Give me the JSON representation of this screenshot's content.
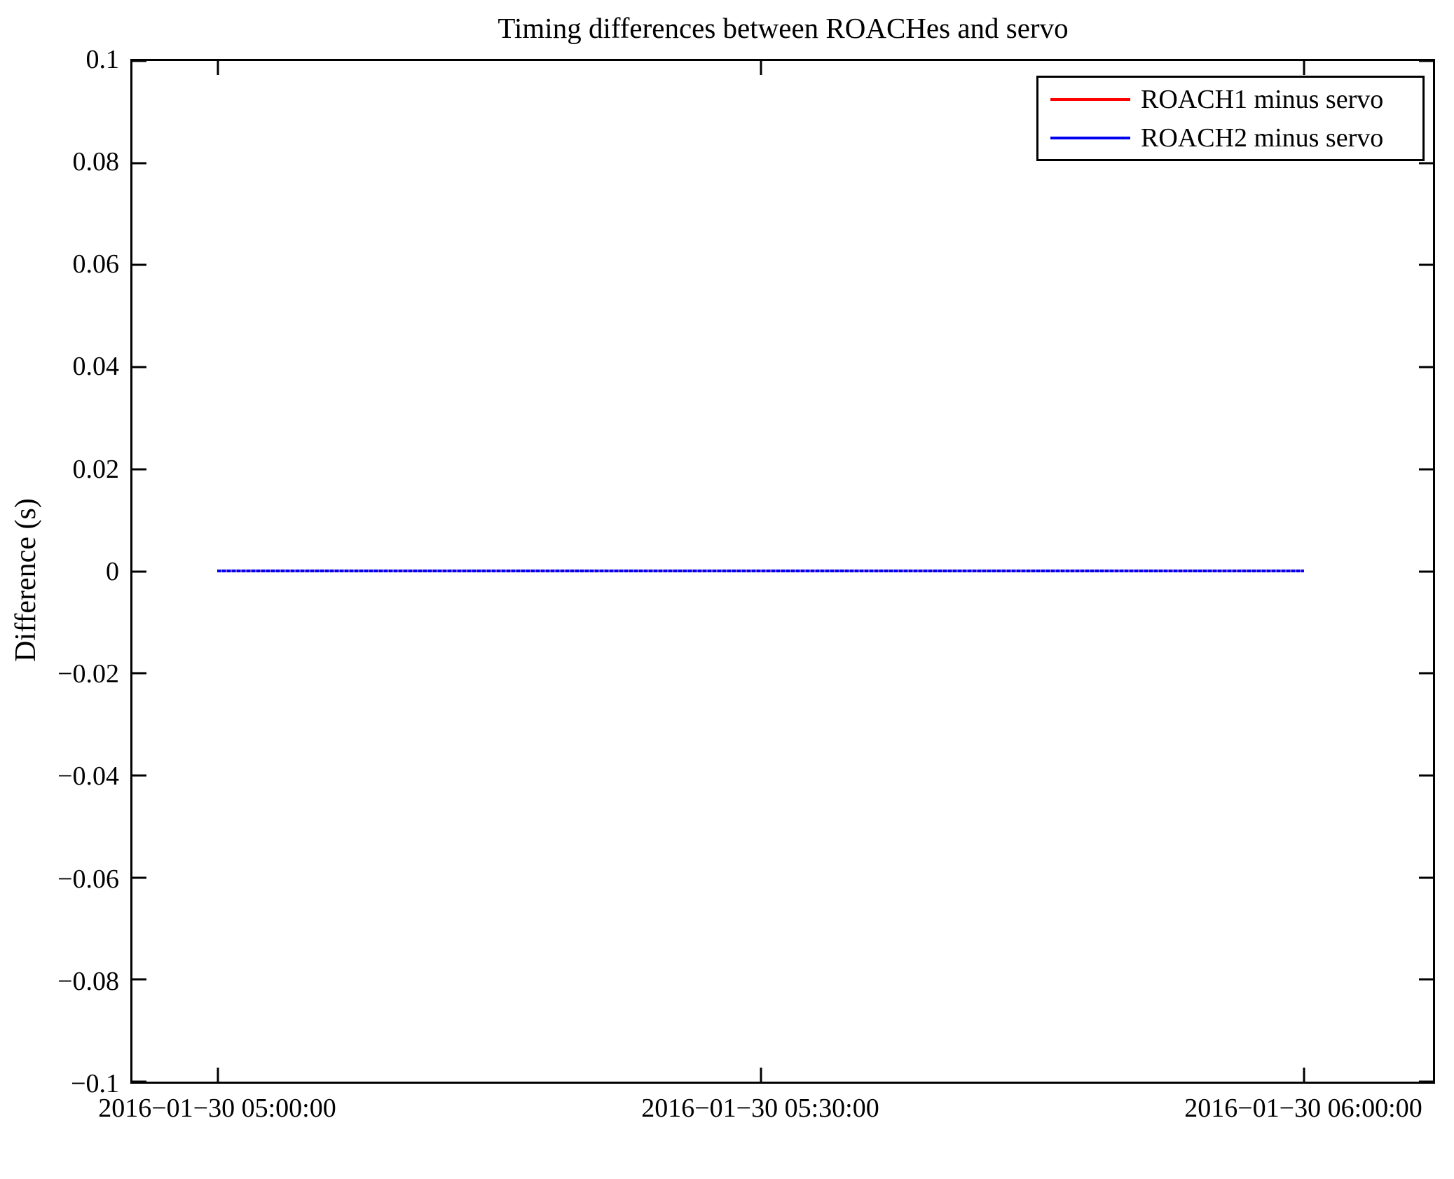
{
  "title": "Timing differences between ROACHes and servo",
  "y_axis": {
    "label": "Difference (s)",
    "tick_labels": [
      "0.1",
      "0.08",
      "0.06",
      "0.04",
      "0.02",
      "0",
      "−0.02",
      "−0.04",
      "−0.06",
      "−0.08",
      "−0.1"
    ]
  },
  "x_axis": {
    "tick_labels": [
      "2016−01−30 05:00:00",
      "2016−01−30 05:30:00",
      "2016−01−30 06:00:00"
    ]
  },
  "legend": {
    "position": "upper right",
    "entries": [
      {
        "label": "ROACH1 minus servo",
        "color": "#ff0000"
      },
      {
        "label": "ROACH2 minus servo",
        "color": "#0000ee"
      }
    ]
  },
  "chart_data": {
    "type": "line",
    "title": "Timing differences between ROACHes and servo",
    "xlabel": "",
    "ylabel": "Difference (s)",
    "ylim": [
      -0.1,
      0.1
    ],
    "xlim": [
      "2016-01-30 04:55:14",
      "2016-01-30 06:07:15"
    ],
    "grid": false,
    "legend_position": "upper right",
    "x_tick_values": [
      "2016-01-30 05:00:00",
      "2016-01-30 05:30:00",
      "2016-01-30 06:00:00"
    ],
    "y_tick_values": [
      0.1,
      0.08,
      0.06,
      0.04,
      0.02,
      0,
      -0.02,
      -0.04,
      -0.06,
      -0.08,
      -0.1
    ],
    "series": [
      {
        "name": "ROACH1 minus servo",
        "color": "#ff0000",
        "x": [
          "2016-01-30 05:00:00",
          "2016-01-30 06:00:00"
        ],
        "values": [
          0.0,
          0.0
        ],
        "note": "flat line at 0 s for entire span, hidden beneath ROACH2 trace"
      },
      {
        "name": "ROACH2 minus servo",
        "color": "#0000ee",
        "x": [
          "2016-01-30 05:00:00",
          "2016-01-30 06:00:00"
        ],
        "values": [
          0.0,
          0.0
        ],
        "note": "flat line at 0 s for entire span, drawn on top"
      }
    ]
  }
}
